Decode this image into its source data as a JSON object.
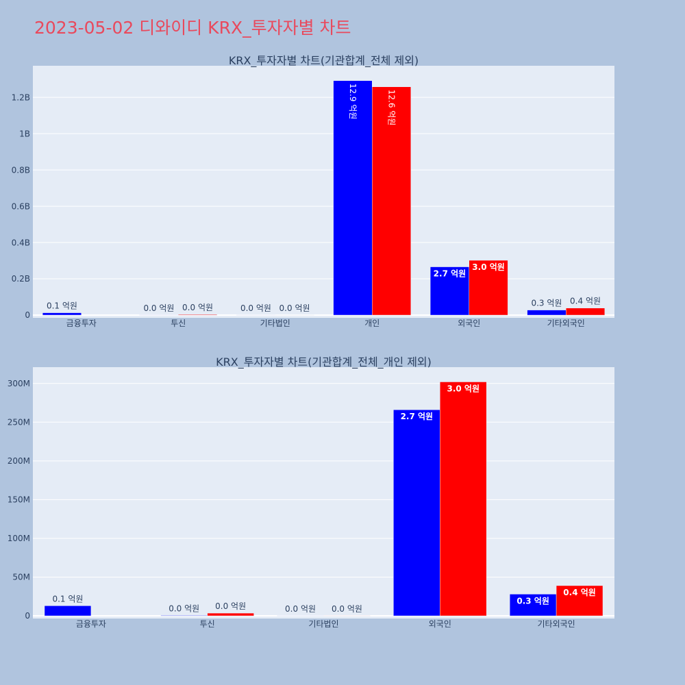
{
  "figure": {
    "title": "2023-05-02 디와이디 KRX_투자자별 차트"
  },
  "colors": {
    "page_background": "#B0C4DE",
    "plot_background": "#E5ECF6",
    "grid": "#FFFFFF",
    "text": "#2A3F5F",
    "title": "#E9495C",
    "inside_label": "#FFFFFF"
  },
  "chart_data": [
    {
      "type": "bar",
      "title": "KRX_투자자별 차트(기관합계_전체 제외)",
      "xlabel": "",
      "ylabel": "",
      "categories": [
        "금융투자",
        "투신",
        "기타법인",
        "개인",
        "외국인",
        "기타외국인"
      ],
      "ylim": [
        -15000000,
        1374000000
      ],
      "yticks": [
        0,
        200000000,
        400000000,
        600000000,
        800000000,
        1000000000,
        1200000000
      ],
      "ytick_labels": [
        "0",
        "0.2B",
        "0.4B",
        "0.6B",
        "0.8B",
        "1B",
        "1.2B"
      ],
      "grid": true,
      "legend": false,
      "series": [
        {
          "color": "#0000FF",
          "values": [
            13000000,
            600000,
            200000,
            1292000000,
            266000000,
            28000000
          ],
          "labels": [
            "0.1 억원",
            "0.0 억원",
            "0.0 억원",
            "12.9 억원",
            "2.7 억원",
            "0.3 억원"
          ]
        },
        {
          "color": "#FF0000",
          "values": [
            null,
            3500000,
            100000,
            1258000000,
            302000000,
            39000000
          ],
          "labels": [
            null,
            "0.0 억원",
            "0.0 억원",
            "12.6 억원",
            "3.0 억원",
            "0.4 억원"
          ]
        }
      ]
    },
    {
      "type": "bar",
      "title": "KRX_투자자별 차트(기관합계_전체_개인 제외)",
      "xlabel": "",
      "ylabel": "",
      "categories": [
        "금융투자",
        "투신",
        "기타법인",
        "외국인",
        "기타외국인"
      ],
      "ylim": [
        -3500000,
        321000000
      ],
      "yticks": [
        0,
        50000000,
        100000000,
        150000000,
        200000000,
        250000000,
        300000000
      ],
      "ytick_labels": [
        "0",
        "50M",
        "100M",
        "150M",
        "200M",
        "250M",
        "300M"
      ],
      "grid": true,
      "legend": false,
      "series": [
        {
          "color": "#0000FF",
          "values": [
            13000000,
            600000,
            200000,
            266000000,
            28000000
          ],
          "labels": [
            "0.1 억원",
            "0.0 억원",
            "0.0 억원",
            "2.7 억원",
            "0.3 억원"
          ]
        },
        {
          "color": "#FF0000",
          "values": [
            null,
            3500000,
            100000,
            302000000,
            39000000
          ],
          "labels": [
            null,
            "0.0 억원",
            "0.0 억원",
            "3.0 억원",
            "0.4 억원"
          ]
        }
      ]
    }
  ]
}
